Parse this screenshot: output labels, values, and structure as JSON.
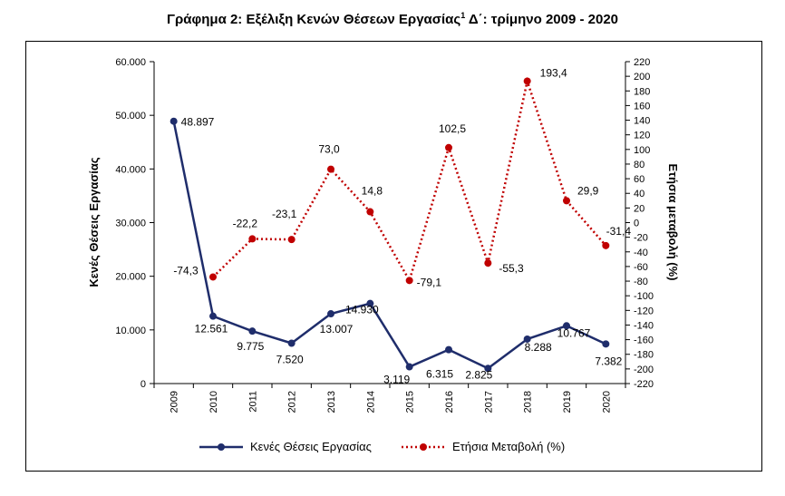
{
  "title": {
    "main": "Γράφημα 2: Εξέλιξη Κενών Θέσεων Εργασίας",
    "superscript": "1",
    "suffix": " Δ΄: τρίμηνο 2009 - 2020"
  },
  "colors": {
    "vacancies": "#1f2d6b",
    "change": "#c00000",
    "axis": "#000000"
  },
  "chart_data": {
    "type": "line",
    "categories": [
      "2009",
      "2010",
      "2011",
      "2012",
      "2013",
      "2014",
      "2015",
      "2016",
      "2017",
      "2018",
      "2019",
      "2020"
    ],
    "series": [
      {
        "name": "Κενές Θέσεις Εργασίας",
        "axis": "left",
        "style": "solid",
        "values": [
          48897,
          12561,
          9775,
          7520,
          13007,
          14930,
          3119,
          6315,
          2825,
          8288,
          10767,
          7382
        ],
        "labels": [
          "48.897",
          "12.561",
          "9.775",
          "7.520",
          "13.007",
          "14.930",
          "3.119",
          "6.315",
          "2.825",
          "8.288",
          "10.767",
          "7.382"
        ]
      },
      {
        "name": "Ετήσια Μεταβολή (%)",
        "axis": "right",
        "style": "dotted",
        "values": [
          null,
          -74.3,
          -22.2,
          -23.1,
          73.0,
          14.8,
          -79.1,
          102.5,
          -55.3,
          193.4,
          29.9,
          -31.4
        ],
        "labels": [
          "",
          "-74,3",
          "-22,2",
          "-23,1",
          "73,0",
          "14,8",
          "-79,1",
          "102,5",
          "-55,3",
          "193,4",
          "29,9",
          "-31,4"
        ]
      }
    ],
    "y_left": {
      "label": "Κενές Θέσεις Εργασίας",
      "ylim": [
        0,
        60000
      ],
      "ticks": [
        0,
        10000,
        20000,
        30000,
        40000,
        50000,
        60000
      ],
      "tick_labels": [
        "0",
        "10.000",
        "20.000",
        "30.000",
        "40.000",
        "50.000",
        "60.000"
      ]
    },
    "y_right": {
      "label": "Ετήσια μεταβολή (%)",
      "ylim": [
        -220,
        220
      ],
      "ticks": [
        -220,
        -200,
        -180,
        -160,
        -140,
        -120,
        -100,
        -80,
        -60,
        -40,
        -20,
        0,
        20,
        40,
        60,
        80,
        100,
        120,
        140,
        160,
        180,
        200,
        220
      ]
    },
    "legend_position": "bottom",
    "grid": false
  }
}
